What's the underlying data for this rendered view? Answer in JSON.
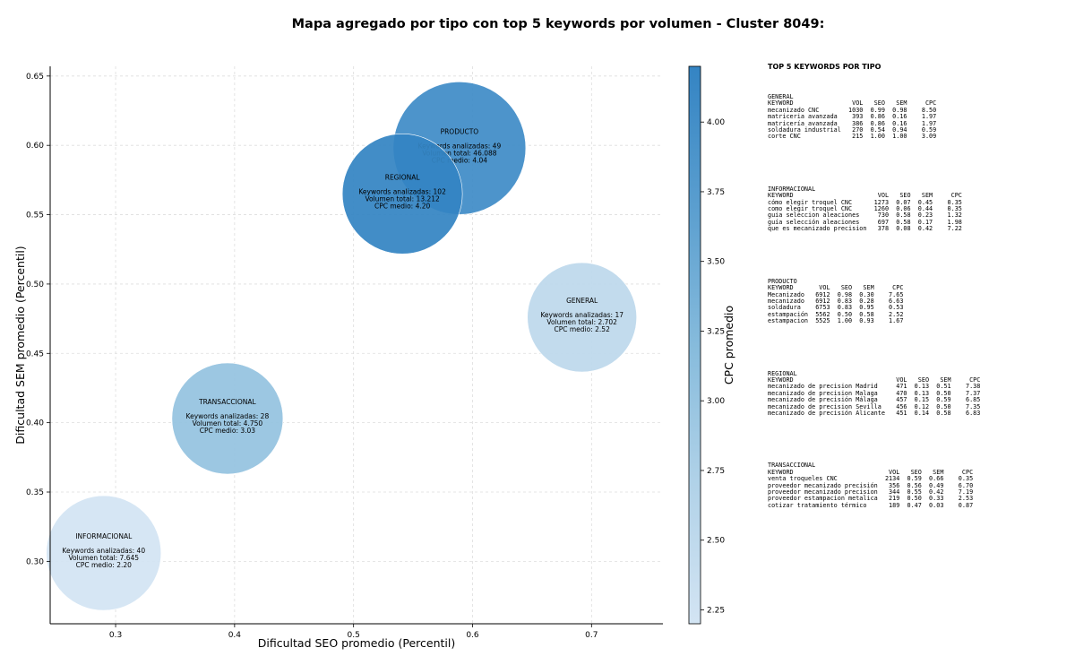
{
  "title": "Mapa agregado por tipo con top 5 keywords por volumen - Cluster 8049:",
  "sidebar_title": "TOP 5 KEYWORDS POR TIPO",
  "chart_data": {
    "type": "scatter",
    "title": "Mapa agregado por tipo con top 5 keywords por volumen - Cluster 8049:",
    "xlabel": "Dificultad SEO promedio (Percentil)",
    "ylabel": "Dificultad SEM promedio (Percentil)",
    "xlim": [
      0.245,
      0.76
    ],
    "ylim": [
      0.255,
      0.657
    ],
    "xticks": [
      0.3,
      0.4,
      0.5,
      0.6,
      0.7
    ],
    "yticks": [
      0.3,
      0.35,
      0.4,
      0.45,
      0.5,
      0.55,
      0.6,
      0.65
    ],
    "grid": true,
    "colorbar": {
      "label": "CPC promedio",
      "min": 2.2,
      "max": 4.2,
      "ticks": [
        2.25,
        2.5,
        2.75,
        3.0,
        3.25,
        3.5,
        3.75,
        4.0
      ],
      "colors": [
        "#d3e4f3",
        "#3484c3"
      ]
    },
    "points": [
      {
        "label": "PRODUCTO",
        "x": 0.589,
        "y": 0.598,
        "keywords": 49,
        "volume": "46.088",
        "cpc": 4.04,
        "lines": [
          "Keywords analizadas: 49",
          "Volumen total: 46.088",
          "CPC medio: 4.04"
        ]
      },
      {
        "label": "REGIONAL",
        "x": 0.541,
        "y": 0.565,
        "keywords": 102,
        "volume": "13.212",
        "cpc": 4.2,
        "lines": [
          "Keywords analizadas: 102",
          "Volumen total: 13.212",
          "CPC medio: 4.20"
        ]
      },
      {
        "label": "GENERAL",
        "x": 0.692,
        "y": 0.476,
        "keywords": 17,
        "volume": "2.702",
        "cpc": 2.52,
        "lines": [
          "Keywords analizadas: 17",
          "Volumen total: 2.702",
          "CPC medio: 2.52"
        ]
      },
      {
        "label": "TRANSACCIONAL",
        "x": 0.394,
        "y": 0.403,
        "keywords": 28,
        "volume": "4.750",
        "cpc": 3.03,
        "lines": [
          "Keywords analizadas: 28",
          "Volumen total: 4.750",
          "CPC medio: 3.03"
        ]
      },
      {
        "label": "INFORMACIONAL",
        "x": 0.29,
        "y": 0.306,
        "keywords": 40,
        "volume": "7.645",
        "cpc": 2.2,
        "lines": [
          "Keywords analizadas: 40",
          "Volumen total: 7.645",
          "CPC medio: 2.20"
        ]
      }
    ]
  },
  "keyword_tables": [
    {
      "name": "GENERAL",
      "header": [
        "KEYWORD",
        "VOL",
        "SEO",
        "SEM",
        "CPC"
      ],
      "rows": [
        [
          "mecanizado CNC",
          "1030",
          "0.99",
          "0.98",
          "8.50"
        ],
        [
          "matriceria avanzada",
          "393",
          "0.86",
          "0.16",
          "1.97"
        ],
        [
          "matricería avanzada",
          "386",
          "0.86",
          "0.16",
          "1.97"
        ],
        [
          "soldadura industrial",
          "270",
          "0.54",
          "0.94",
          "0.59"
        ],
        [
          "corte CNC",
          "215",
          "1.00",
          "1.00",
          "3.09"
        ]
      ]
    },
    {
      "name": "INFORMACIONAL",
      "header": [
        "KEYWORD",
        "VOL",
        "SEO",
        "SEM",
        "CPC"
      ],
      "rows": [
        [
          "cómo elegir troquel CNC",
          "1273",
          "0.07",
          "0.45",
          "0.35"
        ],
        [
          "como elegir troquel CNC",
          "1260",
          "0.06",
          "0.44",
          "0.35"
        ],
        [
          "guia seleccion aleaciones",
          "730",
          "0.58",
          "0.23",
          "1.32"
        ],
        [
          "guía selección aleaciones",
          "697",
          "0.58",
          "0.17",
          "1.98"
        ],
        [
          "que es mecanizado precision",
          "378",
          "0.08",
          "0.42",
          "7.22"
        ]
      ]
    },
    {
      "name": "PRODUCTO",
      "header": [
        "KEYWORD",
        "VOL",
        "SEO",
        "SEM",
        "CPC"
      ],
      "rows": [
        [
          "Mecanizado",
          "6912",
          "0.98",
          "0.30",
          "7.65"
        ],
        [
          "mecanizado",
          "6912",
          "0.83",
          "0.28",
          "6.63"
        ],
        [
          "soldadura",
          "6753",
          "0.83",
          "0.95",
          "0.53"
        ],
        [
          "estampación",
          "5562",
          "0.50",
          "0.58",
          "2.52"
        ],
        [
          "estampacion",
          "5525",
          "1.00",
          "0.93",
          "1.67"
        ]
      ]
    },
    {
      "name": "REGIONAL",
      "header": [
        "KEYWORD",
        "VOL",
        "SEO",
        "SEM",
        "CPC"
      ],
      "rows": [
        [
          "mecanizado de precision Madrid",
          "471",
          "0.13",
          "0.51",
          "7.38"
        ],
        [
          "mecanizado de precision Malaga",
          "470",
          "0.13",
          "0.50",
          "7.37"
        ],
        [
          "mecanizado de precisión Málaga",
          "457",
          "0.15",
          "0.59",
          "6.85"
        ],
        [
          "mecanizado de precision Sevilla",
          "456",
          "0.12",
          "0.50",
          "7.35"
        ],
        [
          "mecanizado de precisión Alicante",
          "451",
          "0.14",
          "0.58",
          "6.83"
        ]
      ]
    },
    {
      "name": "TRANSACCIONAL",
      "header": [
        "KEYWORD",
        "VOL",
        "SEO",
        "SEM",
        "CPC"
      ],
      "rows": [
        [
          "venta troqueles CNC",
          "2134",
          "0.59",
          "0.66",
          "0.35"
        ],
        [
          "proveedor mecanizado precisión",
          "356",
          "0.56",
          "0.49",
          "6.70"
        ],
        [
          "proveedor mecanizado precision",
          "344",
          "0.55",
          "0.42",
          "7.19"
        ],
        [
          "proveedor estampacion metalica",
          "219",
          "0.50",
          "0.33",
          "2.53"
        ],
        [
          "cotizar tratamiento térmico",
          "189",
          "0.47",
          "0.03",
          "0.87"
        ]
      ]
    }
  ]
}
